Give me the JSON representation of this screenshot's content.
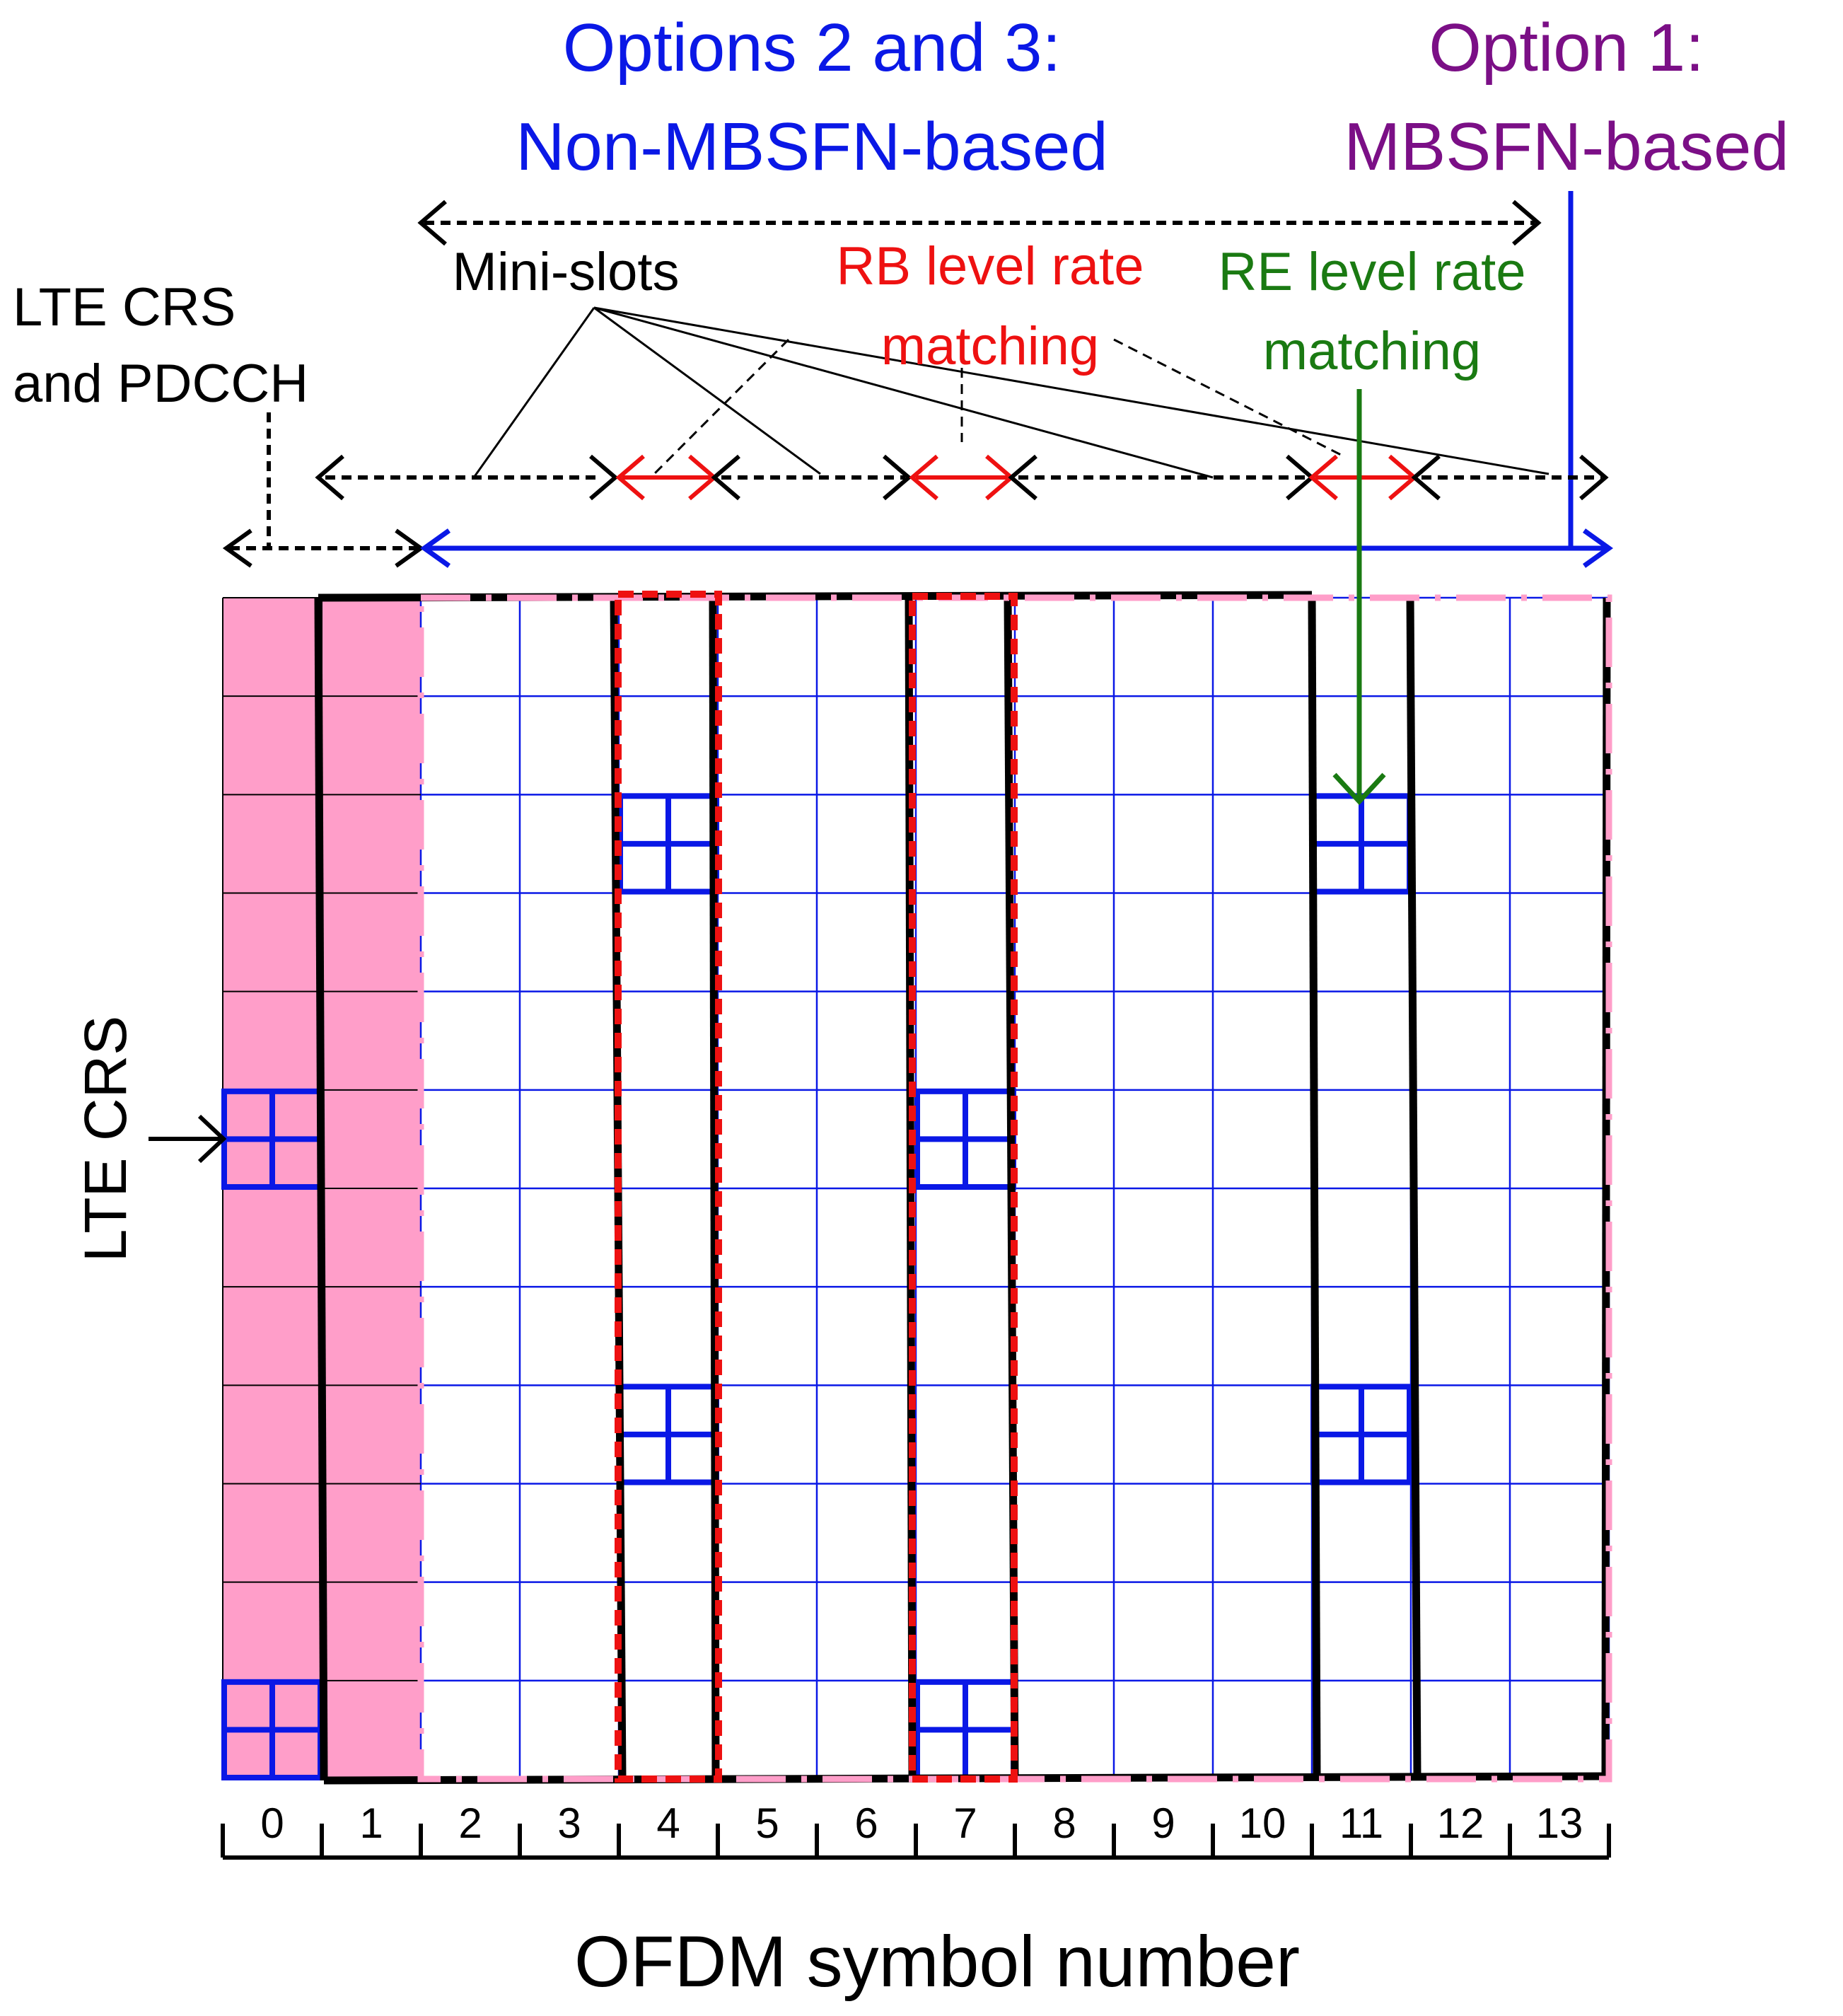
{
  "titles": {
    "options23_line1": "Options 2 and 3:",
    "options23_line2": "Non-MBSFN-based",
    "option1_line1": "Option 1:",
    "option1_line2": "MBSFN-based"
  },
  "labels": {
    "lte_crs_pdcch_line1": "LTE CRS",
    "lte_crs_pdcch_line2": "and PDCCH",
    "mini_slots": "Mini-slots",
    "rb_rate_line1": "RB level rate",
    "rb_rate_line2": "matching",
    "re_rate_line1": "RE level rate",
    "re_rate_line2": "matching",
    "lte_crs": "LTE CRS",
    "x_axis": "OFDM symbol number"
  },
  "symbols": [
    "0",
    "1",
    "2",
    "3",
    "4",
    "5",
    "6",
    "7",
    "8",
    "9",
    "10",
    "11",
    "12",
    "13"
  ],
  "grid": {
    "num_symbols": 14,
    "num_rows": 12
  },
  "crs_positions": [
    {
      "symbol": 0,
      "row": 5
    },
    {
      "symbol": 0,
      "row": 11
    },
    {
      "symbol": 4,
      "row": 2
    },
    {
      "symbol": 4,
      "row": 8
    },
    {
      "symbol": 7,
      "row": 5
    },
    {
      "symbol": 7,
      "row": 11
    },
    {
      "symbol": 11,
      "row": 2
    },
    {
      "symbol": 11,
      "row": 8
    }
  ],
  "colors": {
    "blue": "#0a18e6",
    "purple": "#7b0f86",
    "red": "#ee1111",
    "green": "#1a7a12",
    "pink": "#ff9ec9",
    "black": "#000000"
  }
}
